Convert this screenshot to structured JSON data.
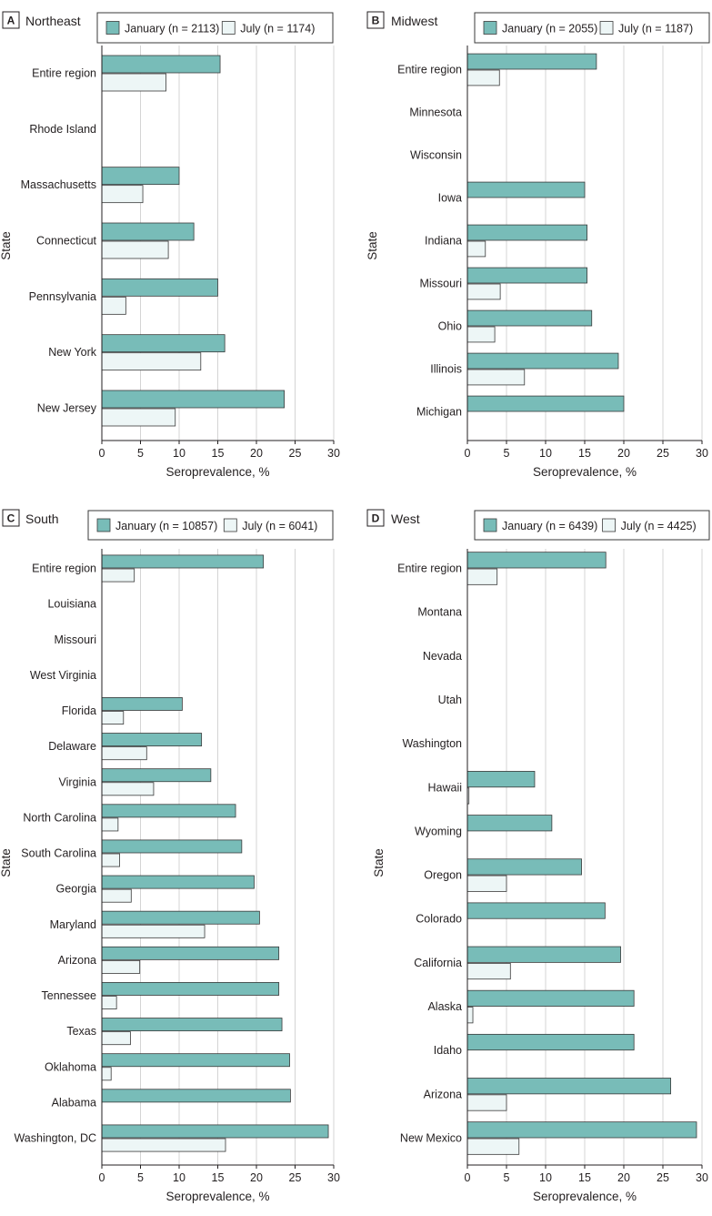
{
  "colors": {
    "january": "#78bcb8",
    "july": "#edf6f6",
    "edge": "#3a3a3a",
    "grid": "#d4d4d4"
  },
  "common": {
    "ylabel": "State",
    "xlabel": "Seroprevalence, %",
    "xlim": [
      0,
      30
    ],
    "xticks": [
      0,
      5,
      10,
      15,
      20,
      25,
      30
    ]
  },
  "chart_data": [
    {
      "letter": "A",
      "title": "Northeast",
      "type": "bar",
      "orientation": "horizontal",
      "legend": [
        "January (n = 2113)",
        "July (n = 1174)"
      ],
      "categories": [
        "Entire region",
        "Rhode Island",
        "Massachusetts",
        "Connecticut",
        "Pennsylvania",
        "New York",
        "New Jersey"
      ],
      "series": [
        {
          "name": "January",
          "values": [
            15.3,
            null,
            10.0,
            11.9,
            15.0,
            15.9,
            23.6
          ]
        },
        {
          "name": "July",
          "values": [
            8.3,
            null,
            5.3,
            8.6,
            3.1,
            12.8,
            9.5
          ]
        }
      ]
    },
    {
      "letter": "B",
      "title": "Midwest",
      "type": "bar",
      "orientation": "horizontal",
      "legend": [
        "January (n = 2055)",
        "July (n = 1187)"
      ],
      "categories": [
        "Entire region",
        "Minnesota",
        "Wisconsin",
        "Iowa",
        "Indiana",
        "Missouri",
        "Ohio",
        "Illinois",
        "Michigan"
      ],
      "series": [
        {
          "name": "January",
          "values": [
            16.5,
            null,
            null,
            15.0,
            15.3,
            15.3,
            15.9,
            19.3,
            20.0
          ]
        },
        {
          "name": "July",
          "values": [
            4.1,
            null,
            null,
            null,
            2.3,
            4.2,
            3.5,
            7.3,
            null
          ]
        }
      ]
    },
    {
      "letter": "C",
      "title": "South",
      "type": "bar",
      "orientation": "horizontal",
      "legend": [
        "January (n = 10857)",
        "July (n = 6041)"
      ],
      "categories": [
        "Entire region",
        "Louisiana",
        "Missouri",
        "West Virginia",
        "Florida",
        "Delaware",
        "Virginia",
        "North Carolina",
        "South Carolina",
        "Georgia",
        "Maryland",
        "Arizona",
        "Tennessee",
        "Texas",
        "Oklahoma",
        "Alabama",
        "Washington, DC"
      ],
      "series": [
        {
          "name": "January",
          "values": [
            20.9,
            null,
            null,
            null,
            10.4,
            12.9,
            14.1,
            17.3,
            18.1,
            19.7,
            20.4,
            22.9,
            22.9,
            23.3,
            24.3,
            24.4,
            29.3
          ]
        },
        {
          "name": "July",
          "values": [
            4.2,
            null,
            null,
            null,
            2.8,
            5.8,
            6.7,
            2.1,
            2.3,
            3.8,
            13.3,
            4.9,
            1.9,
            3.7,
            1.2,
            null,
            16.0
          ]
        }
      ]
    },
    {
      "letter": "D",
      "title": "West",
      "type": "bar",
      "orientation": "horizontal",
      "legend": [
        "January (n = 6439)",
        "July (n = 4425)"
      ],
      "categories": [
        "Entire region",
        "Montana",
        "Nevada",
        "Utah",
        "Washington",
        "Hawaii",
        "Wyoming",
        "Oregon",
        "Colorado",
        "California",
        "Alaska",
        "Idaho",
        "Arizona",
        "New Mexico"
      ],
      "series": [
        {
          "name": "January",
          "values": [
            17.7,
            null,
            null,
            null,
            null,
            8.6,
            10.8,
            14.6,
            17.6,
            19.6,
            21.3,
            21.3,
            26.0,
            29.3
          ]
        },
        {
          "name": "July",
          "values": [
            3.8,
            null,
            null,
            null,
            null,
            0.2,
            null,
            5.0,
            null,
            5.5,
            0.7,
            null,
            5.0,
            6.6
          ]
        }
      ]
    }
  ]
}
